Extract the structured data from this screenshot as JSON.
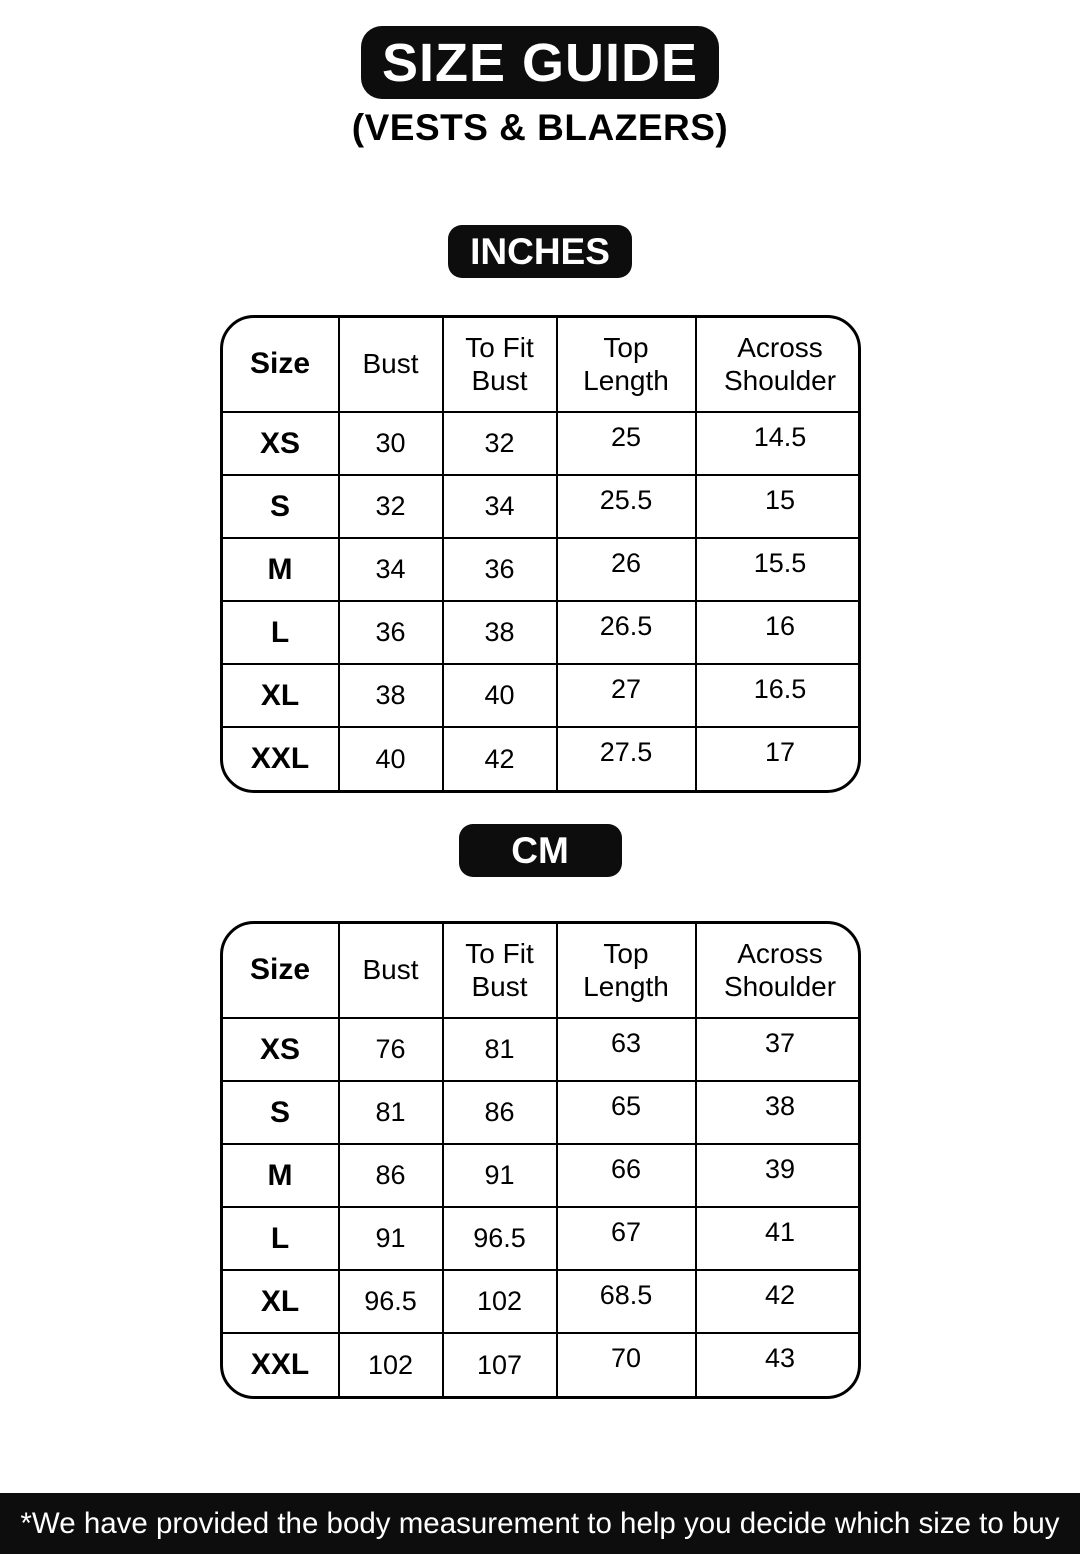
{
  "header": {
    "title": "SIZE GUIDE",
    "subtitle": "(VESTS & BLAZERS)"
  },
  "sections": [
    {
      "unit_label": "INCHES",
      "table": {
        "headers": [
          "Size",
          "Bust",
          "To Fit Bust",
          "Top Length",
          "Across Shoulder"
        ],
        "rows": [
          [
            "XS",
            "30",
            "32",
            "25",
            "14.5"
          ],
          [
            "S",
            "32",
            "34",
            "25.5",
            "15"
          ],
          [
            "M",
            "34",
            "36",
            "26",
            "15.5"
          ],
          [
            "L",
            "36",
            "38",
            "26.5",
            "16"
          ],
          [
            "XL",
            "38",
            "40",
            "27",
            "16.5"
          ],
          [
            "XXL",
            "40",
            "42",
            "27.5",
            "17"
          ]
        ]
      }
    },
    {
      "unit_label": "CM",
      "table": {
        "headers": [
          "Size",
          "Bust",
          "To Fit Bust",
          "Top Length",
          "Across Shoulder"
        ],
        "rows": [
          [
            "XS",
            "76",
            "81",
            "63",
            "37"
          ],
          [
            "S",
            "81",
            "86",
            "65",
            "38"
          ],
          [
            "M",
            "86",
            "91",
            "66",
            "39"
          ],
          [
            "L",
            "91",
            "96.5",
            "67",
            "41"
          ],
          [
            "XL",
            "96.5",
            "102",
            "68.5",
            "42"
          ],
          [
            "XXL",
            "102",
            "107",
            "70",
            "43"
          ]
        ]
      }
    }
  ],
  "footer": {
    "note": "*We have provided the body measurement to help you decide which size to buy"
  },
  "colors": {
    "badge_bg": "#0d0d0d",
    "badge_text": "#ffffff",
    "table_border": "#000000",
    "page_bg": "#ffffff"
  }
}
